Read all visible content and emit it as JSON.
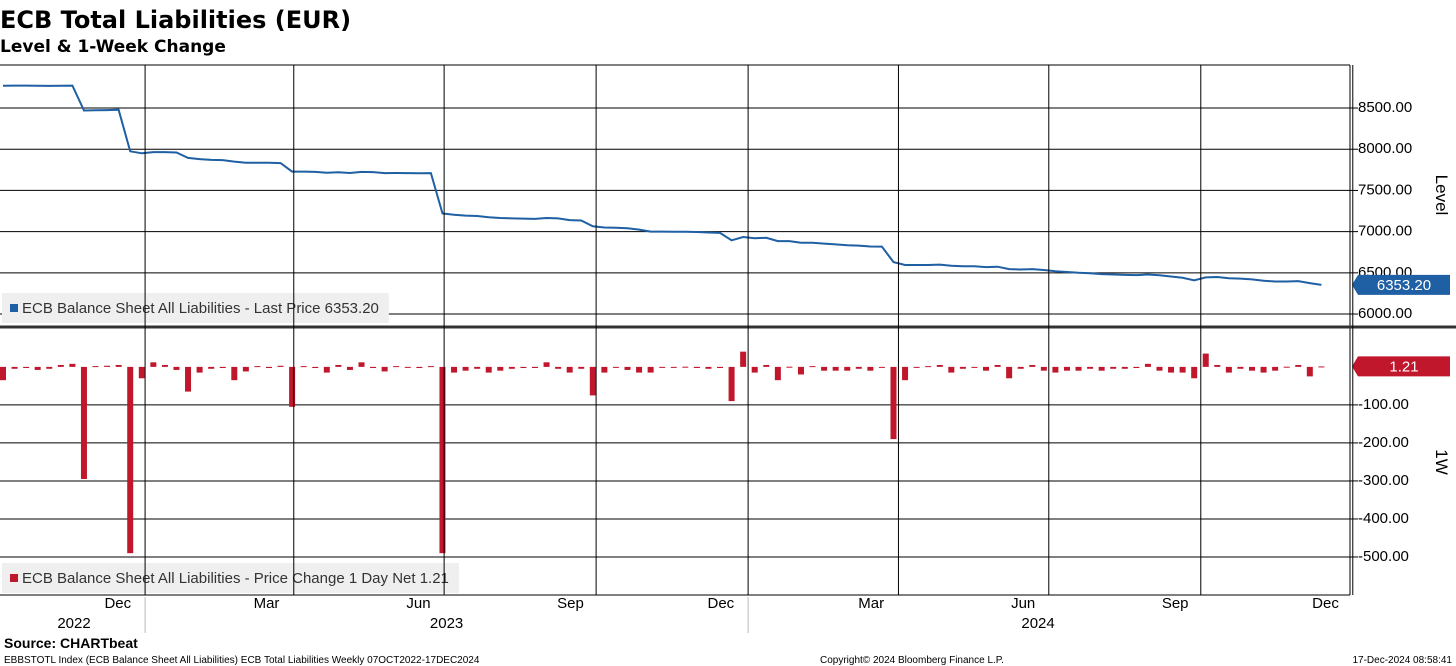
{
  "header": {
    "title": "ECB Total Liabilities (EUR)",
    "subtitle": "Level & 1-Week Change"
  },
  "chart_data": [
    {
      "type": "line",
      "y_axis_title": "Level",
      "xlim": [
        "2022-10-07",
        "2024-12-17"
      ],
      "ylim": [
        5867,
        9022
      ],
      "yticks": [
        {
          "value": 6000,
          "label": "6000.00"
        },
        {
          "value": 6500,
          "label": "6500.00"
        },
        {
          "value": 7000,
          "label": "7000.00"
        },
        {
          "value": 7500,
          "label": "7500.00"
        },
        {
          "value": 8000,
          "label": "8000.00"
        },
        {
          "value": 8500,
          "label": "8500.00"
        }
      ],
      "grid": true,
      "x": [
        "2022-10-07",
        "2022-10-14",
        "2022-10-21",
        "2022-10-28",
        "2022-11-04",
        "2022-11-11",
        "2022-11-18",
        "2022-11-25",
        "2022-12-02",
        "2022-12-09",
        "2022-12-16",
        "2022-12-23",
        "2022-12-30",
        "2023-01-06",
        "2023-01-13",
        "2023-01-20",
        "2023-01-27",
        "2023-02-03",
        "2023-02-10",
        "2023-02-17",
        "2023-02-24",
        "2023-03-03",
        "2023-03-10",
        "2023-03-17",
        "2023-03-24",
        "2023-03-31",
        "2023-04-07",
        "2023-04-14",
        "2023-04-21",
        "2023-04-28",
        "2023-05-05",
        "2023-05-12",
        "2023-05-19",
        "2023-05-26",
        "2023-06-02",
        "2023-06-09",
        "2023-06-16",
        "2023-06-23",
        "2023-06-30",
        "2023-07-07",
        "2023-07-14",
        "2023-07-21",
        "2023-07-28",
        "2023-08-04",
        "2023-08-11",
        "2023-08-18",
        "2023-08-25",
        "2023-09-01",
        "2023-09-08",
        "2023-09-15",
        "2023-09-22",
        "2023-09-29",
        "2023-10-06",
        "2023-10-13",
        "2023-10-20",
        "2023-10-27",
        "2023-11-03",
        "2023-11-10",
        "2023-11-17",
        "2023-11-24",
        "2023-12-01",
        "2023-12-08",
        "2023-12-15",
        "2023-12-22",
        "2023-12-29",
        "2024-01-05",
        "2024-01-12",
        "2024-01-19",
        "2024-01-26",
        "2024-02-02",
        "2024-02-09",
        "2024-02-16",
        "2024-02-23",
        "2024-03-01",
        "2024-03-08",
        "2024-03-15",
        "2024-03-22",
        "2024-03-29",
        "2024-04-05",
        "2024-04-12",
        "2024-04-19",
        "2024-04-26",
        "2024-05-03",
        "2024-05-10",
        "2024-05-17",
        "2024-05-24",
        "2024-05-31",
        "2024-06-07",
        "2024-06-14",
        "2024-06-21",
        "2024-06-28",
        "2024-07-05",
        "2024-07-12",
        "2024-07-19",
        "2024-07-26",
        "2024-08-02",
        "2024-08-09",
        "2024-08-16",
        "2024-08-23",
        "2024-08-30",
        "2024-09-06",
        "2024-09-13",
        "2024-09-20",
        "2024-09-27",
        "2024-10-04",
        "2024-10-11",
        "2024-10-18",
        "2024-10-25",
        "2024-11-01",
        "2024-11-08",
        "2024-11-15",
        "2024-11-22",
        "2024-11-29",
        "2024-12-06",
        "2024-12-13"
      ],
      "series": [
        {
          "name": "ECB Balance Sheet All Liabilities - Last Price 6353.20",
          "color": "#1f5fa3",
          "values": [
            8770,
            8772,
            8772,
            8770,
            8768,
            8770,
            8772,
            8470,
            8472,
            8475,
            8480,
            7975,
            7950,
            7965,
            7965,
            7960,
            7895,
            7880,
            7870,
            7868,
            7850,
            7835,
            7835,
            7835,
            7832,
            7728,
            7728,
            7725,
            7715,
            7720,
            7712,
            7725,
            7722,
            7710,
            7712,
            7710,
            7708,
            7710,
            7220,
            7205,
            7195,
            7190,
            7175,
            7165,
            7160,
            7158,
            7155,
            7165,
            7160,
            7140,
            7135,
            7065,
            7050,
            7048,
            7040,
            7025,
            7000,
            7000,
            6998,
            6998,
            6995,
            6990,
            6985,
            6895,
            6935,
            6920,
            6925,
            6885,
            6885,
            6865,
            6865,
            6855,
            6845,
            6835,
            6830,
            6820,
            6818,
            6630,
            6595,
            6595,
            6595,
            6600,
            6585,
            6580,
            6580,
            6570,
            6575,
            6545,
            6540,
            6545,
            6535,
            6520,
            6510,
            6500,
            6495,
            6485,
            6480,
            6475,
            6472,
            6480,
            6470,
            6455,
            6440,
            6410,
            6445,
            6450,
            6435,
            6430,
            6420,
            6405,
            6395,
            6395,
            6400,
            6375,
            6353.2
          ],
          "value_labels": [
            null,
            null,
            null,
            null,
            null,
            null,
            null,
            null,
            null,
            null,
            null,
            null,
            null,
            null,
            null,
            null,
            null,
            null,
            null,
            null,
            null,
            null,
            null,
            null,
            null,
            null,
            null,
            null,
            null,
            null,
            null,
            null,
            null,
            null,
            null,
            null,
            null,
            null,
            null,
            null,
            null,
            null,
            null,
            null,
            null,
            null,
            null,
            null,
            null,
            null,
            null,
            null,
            null,
            null,
            null,
            null,
            null,
            null,
            null,
            null,
            null,
            null,
            null,
            null,
            null,
            null,
            null,
            null,
            null,
            null,
            null,
            null,
            null,
            null,
            null,
            null,
            null,
            null,
            null,
            null,
            null,
            null,
            null,
            null,
            null,
            null,
            null,
            null,
            null,
            null,
            null,
            null,
            null,
            null,
            null,
            null,
            null,
            null,
            null,
            null,
            null,
            null,
            null,
            null,
            null,
            null,
            null,
            null,
            null,
            null,
            null,
            null,
            null,
            null,
            "6353.20"
          ]
        }
      ]
    },
    {
      "type": "bar",
      "y_axis_title": "1W",
      "xlim": [
        "2022-10-07",
        "2024-12-17"
      ],
      "ylim": [
        -600,
        97
      ],
      "yticks": [
        {
          "value": -500,
          "label": "-500.00"
        },
        {
          "value": -400,
          "label": "-400.00"
        },
        {
          "value": -300,
          "label": "-300.00"
        },
        {
          "value": -200,
          "label": "-200.00"
        },
        {
          "value": -100,
          "label": "-100.00"
        }
      ],
      "grid": true,
      "xticks": [
        {
          "value": "2022-12",
          "label": "Dec"
        },
        {
          "value": "2023-03",
          "label": "Mar"
        },
        {
          "value": "2023-06",
          "label": "Jun"
        },
        {
          "value": "2023-09",
          "label": "Sep"
        },
        {
          "value": "2023-12",
          "label": "Dec"
        },
        {
          "value": "2024-03",
          "label": "Mar"
        },
        {
          "value": "2024-06",
          "label": "Jun"
        },
        {
          "value": "2024-09",
          "label": "Sep"
        },
        {
          "value": "2024-12",
          "label": "Dec"
        }
      ],
      "year_labels": [
        "2022",
        "2023",
        "2024"
      ],
      "x": [
        "2022-10-07",
        "2022-10-14",
        "2022-10-21",
        "2022-10-28",
        "2022-11-04",
        "2022-11-11",
        "2022-11-18",
        "2022-11-25",
        "2022-12-02",
        "2022-12-09",
        "2022-12-16",
        "2022-12-23",
        "2022-12-30",
        "2023-01-06",
        "2023-01-13",
        "2023-01-20",
        "2023-01-27",
        "2023-02-03",
        "2023-02-10",
        "2023-02-17",
        "2023-02-24",
        "2023-03-03",
        "2023-03-10",
        "2023-03-17",
        "2023-03-24",
        "2023-03-31",
        "2023-04-07",
        "2023-04-14",
        "2023-04-21",
        "2023-04-28",
        "2023-05-05",
        "2023-05-12",
        "2023-05-19",
        "2023-05-26",
        "2023-06-02",
        "2023-06-09",
        "2023-06-16",
        "2023-06-23",
        "2023-06-30",
        "2023-07-07",
        "2023-07-14",
        "2023-07-21",
        "2023-07-28",
        "2023-08-04",
        "2023-08-11",
        "2023-08-18",
        "2023-08-25",
        "2023-09-01",
        "2023-09-08",
        "2023-09-15",
        "2023-09-22",
        "2023-09-29",
        "2023-10-06",
        "2023-10-13",
        "2023-10-20",
        "2023-10-27",
        "2023-11-03",
        "2023-11-10",
        "2023-11-17",
        "2023-11-24",
        "2023-12-01",
        "2023-12-08",
        "2023-12-15",
        "2023-12-22",
        "2023-12-29",
        "2024-01-05",
        "2024-01-12",
        "2024-01-19",
        "2024-01-26",
        "2024-02-02",
        "2024-02-09",
        "2024-02-16",
        "2024-02-23",
        "2024-03-01",
        "2024-03-08",
        "2024-03-15",
        "2024-03-22",
        "2024-03-29",
        "2024-04-05",
        "2024-04-12",
        "2024-04-19",
        "2024-04-26",
        "2024-05-03",
        "2024-05-10",
        "2024-05-17",
        "2024-05-24",
        "2024-05-31",
        "2024-06-07",
        "2024-06-14",
        "2024-06-21",
        "2024-06-28",
        "2024-07-05",
        "2024-07-12",
        "2024-07-19",
        "2024-07-26",
        "2024-08-02",
        "2024-08-09",
        "2024-08-16",
        "2024-08-23",
        "2024-08-30",
        "2024-09-06",
        "2024-09-13",
        "2024-09-20",
        "2024-09-27",
        "2024-10-04",
        "2024-10-11",
        "2024-10-18",
        "2024-10-25",
        "2024-11-01",
        "2024-11-08",
        "2024-11-15",
        "2024-11-22",
        "2024-11-29",
        "2024-12-06",
        "2024-12-13"
      ],
      "series": [
        {
          "name": "ECB Balance Sheet All Liabilities - Price Change 1 Day Net 1.21",
          "color": "#c0172d",
          "values": [
            -35,
            -5,
            -3,
            -8,
            -5,
            5,
            8,
            -295,
            2,
            3,
            5,
            -490,
            -30,
            12,
            5,
            -8,
            -65,
            -15,
            -5,
            -3,
            -35,
            -12,
            2,
            -3,
            3,
            -105,
            2,
            -3,
            -15,
            5,
            -8,
            12,
            -3,
            -12,
            2,
            -2,
            -3,
            2,
            -490,
            -15,
            -10,
            -5,
            -15,
            -10,
            -5,
            -3,
            -3,
            12,
            -5,
            -15,
            -5,
            -75,
            -15,
            -2,
            -8,
            -15,
            -15,
            -2,
            -2,
            0.5,
            -3,
            -5,
            -3,
            -90,
            40,
            -15,
            5,
            -35,
            0.5,
            -20,
            2,
            -10,
            -10,
            -10,
            -5,
            -10,
            -2,
            -190,
            -35,
            -2,
            2,
            5,
            -15,
            -5,
            -2,
            -10,
            5,
            -30,
            -5,
            5,
            -10,
            -15,
            -10,
            -10,
            -5,
            -10,
            -5,
            -5,
            -3,
            8,
            -10,
            -15,
            -15,
            -30,
            35,
            5,
            -15,
            -5,
            -10,
            -15,
            -10,
            0.5,
            5,
            -25,
            1.21
          ]
        }
      ]
    }
  ],
  "footer": {
    "source": "Source: CHARTbeat",
    "ticker": "EBBSTOTL Index (ECB Balance Sheet All Liabilities) ECB Total Liabilities  Weekly 07OCT2022-17DEC2024",
    "copyright": "Copyright© 2024 Bloomberg Finance L.P.",
    "timestamp": "17-Dec-2024 08:58:41"
  }
}
